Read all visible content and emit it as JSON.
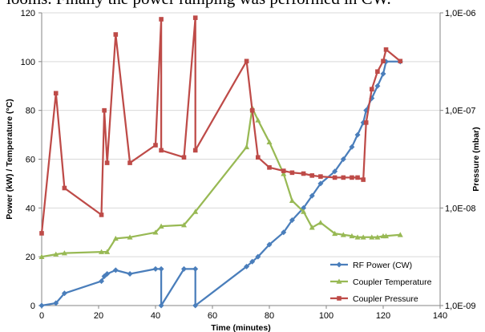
{
  "page": {
    "top_text": "looms. Finally the power ramping was performed in CW."
  },
  "colors": {
    "rf": "#4A7EBB",
    "coupler_temp": "#98B954",
    "coupler_pressure": "#BE4B48",
    "grid": "#D9D9D9",
    "axis": "#868686"
  },
  "chart_data": {
    "type": "line",
    "xlabel": "Time (minutes)",
    "ylabel_left": "Power (kW) / Temperature (°C)",
    "ylabel_right": "Pressure (mbar)",
    "xlim": [
      0,
      140
    ],
    "ylim_left": [
      0,
      120
    ],
    "ylim_right": [
      1e-09,
      1e-06
    ],
    "right_scale": "log",
    "x_ticks": [
      "0",
      "20",
      "40",
      "60",
      "80",
      "100",
      "120",
      "140"
    ],
    "y_ticks_left": [
      "0",
      "20",
      "40",
      "60",
      "80",
      "100",
      "120"
    ],
    "y_ticks_right": [
      {
        "value": 1e-09,
        "label": "1,0E-09"
      },
      {
        "value": 1e-08,
        "label": "1,0E-08"
      },
      {
        "value": 1e-07,
        "label": "1,0E-07"
      },
      {
        "value": 1e-06,
        "label": "1,0E-06"
      }
    ],
    "grid": "horizontal",
    "legend_position": "bottom-right",
    "series": [
      {
        "name": "RF Power (CW)",
        "axis": "left",
        "marker": "diamond",
        "color": "#4A7EBB",
        "points": [
          [
            0,
            0
          ],
          [
            5,
            1
          ],
          [
            8,
            5
          ],
          [
            21,
            10
          ],
          [
            22,
            12
          ],
          [
            23,
            13
          ],
          [
            26,
            14.5
          ],
          [
            31,
            13
          ],
          [
            40,
            15
          ],
          [
            42,
            15
          ],
          [
            42,
            0
          ],
          [
            50,
            15
          ],
          [
            54,
            15
          ],
          [
            54,
            0
          ],
          [
            72,
            16
          ],
          [
            74,
            18
          ],
          [
            76,
            20
          ],
          [
            80,
            25
          ],
          [
            85,
            30
          ],
          [
            88,
            35
          ],
          [
            92,
            40
          ],
          [
            95,
            45
          ],
          [
            98,
            50
          ],
          [
            103,
            55
          ],
          [
            106,
            60
          ],
          [
            109,
            65
          ],
          [
            111,
            70
          ],
          [
            113,
            75
          ],
          [
            114,
            80
          ],
          [
            116,
            85
          ],
          [
            118,
            90
          ],
          [
            120,
            95
          ],
          [
            121,
            100
          ],
          [
            126,
            100
          ]
        ]
      },
      {
        "name": "Coupler Temperature",
        "axis": "left",
        "marker": "triangle",
        "color": "#98B954",
        "points": [
          [
            0,
            20
          ],
          [
            5,
            21
          ],
          [
            8,
            21.5
          ],
          [
            21,
            22
          ],
          [
            23,
            22
          ],
          [
            26,
            27.5
          ],
          [
            31,
            28
          ],
          [
            40,
            30
          ],
          [
            42,
            32.5
          ],
          [
            50,
            33
          ],
          [
            54,
            38.5
          ],
          [
            72,
            65
          ],
          [
            74,
            81
          ],
          [
            76,
            76
          ],
          [
            80,
            67
          ],
          [
            85,
            54
          ],
          [
            88,
            43
          ],
          [
            92,
            38.5
          ],
          [
            95,
            32
          ],
          [
            98,
            34
          ],
          [
            103,
            29.5
          ],
          [
            106,
            29
          ],
          [
            109,
            28.5
          ],
          [
            111,
            28
          ],
          [
            113,
            28
          ],
          [
            116,
            28
          ],
          [
            118,
            28
          ],
          [
            120,
            28.5
          ],
          [
            121,
            28.5
          ],
          [
            126,
            29
          ]
        ]
      },
      {
        "name": "Coupler Pressure",
        "axis": "right",
        "marker": "square",
        "color": "#BE4B48",
        "points": [
          [
            0,
            5.5e-09
          ],
          [
            5,
            1.5e-07
          ],
          [
            8,
            1.6e-08
          ],
          [
            21,
            8.5e-09
          ],
          [
            22,
            1e-07
          ],
          [
            23,
            2.9e-08
          ],
          [
            26,
            6e-07
          ],
          [
            31,
            2.9e-08
          ],
          [
            40,
            4.4e-08
          ],
          [
            42,
            8.6e-07
          ],
          [
            42,
            3.9e-08
          ],
          [
            50,
            3.3e-08
          ],
          [
            54,
            8.9e-07
          ],
          [
            54,
            3.9e-08
          ],
          [
            72,
            3.2e-07
          ],
          [
            74,
            1e-07
          ],
          [
            76,
            3.3e-08
          ],
          [
            80,
            2.6e-08
          ],
          [
            85,
            2.4e-08
          ],
          [
            88,
            2.3e-08
          ],
          [
            92,
            2.25e-08
          ],
          [
            95,
            2.15e-08
          ],
          [
            98,
            2.1e-08
          ],
          [
            103,
            2.05e-08
          ],
          [
            106,
            2.05e-08
          ],
          [
            109,
            2.05e-08
          ],
          [
            111,
            2.05e-08
          ],
          [
            113,
            1.95e-08
          ],
          [
            114,
            7.5e-08
          ],
          [
            116,
            1.65e-07
          ],
          [
            118,
            2.5e-07
          ],
          [
            120,
            3.2e-07
          ],
          [
            121,
            4.2e-07
          ],
          [
            126,
            3.2e-07
          ]
        ]
      }
    ]
  }
}
